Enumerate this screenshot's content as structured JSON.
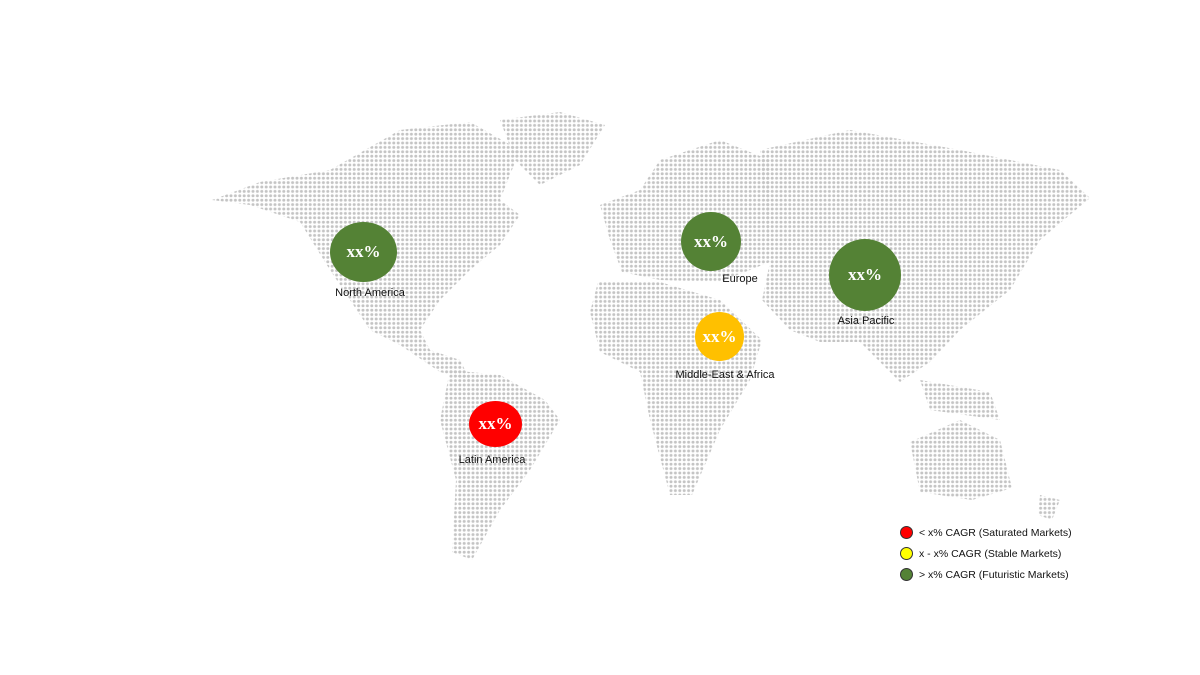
{
  "regions": [
    {
      "name": "North America",
      "value": "xx%",
      "color": "#548235"
    },
    {
      "name": "Europe",
      "value": "xx%",
      "color": "#548235"
    },
    {
      "name": "Asia Pacific",
      "value": "xx%",
      "color": "#548235"
    },
    {
      "name": "Middle-East & Africa",
      "value": "xx%",
      "color": "#ffc000"
    },
    {
      "name": "Latin America",
      "value": "xx%",
      "color": "#ff0000"
    }
  ],
  "legend": [
    {
      "label": "< x% CAGR (Saturated Markets)",
      "color": "#ff0000"
    },
    {
      "label": "x - x% CAGR (Stable Markets)",
      "color": "#ffff00"
    },
    {
      "label": "> x% CAGR (Futuristic Markets)",
      "color": "#548235"
    }
  ],
  "map_color": "#c8c8c8"
}
